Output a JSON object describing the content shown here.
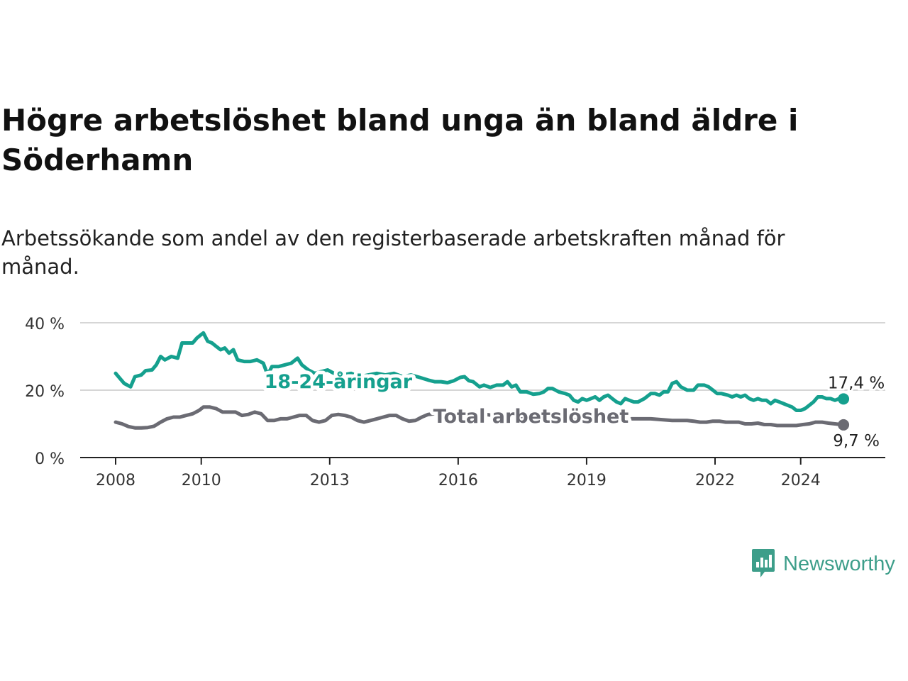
{
  "title": "Högre arbetslöshet bland unga än bland äldre i Söderhamn",
  "subtitle": "Arbetssökande som andel av den registerbaserade arbetskraften månad för månad.",
  "brand": {
    "name": "Newsworthy",
    "color": "#3d9e8a",
    "icon": "newsworthy-chart-bubble-icon"
  },
  "chart_data": {
    "type": "line",
    "y_ticks": [
      {
        "value": 0,
        "label": "0 %"
      },
      {
        "value": 20,
        "label": "20 %"
      },
      {
        "value": 40,
        "label": "40 %"
      }
    ],
    "x_ticks": [
      {
        "value": 2008,
        "label": "2008"
      },
      {
        "value": 2010,
        "label": "2010"
      },
      {
        "value": 2013,
        "label": "2013"
      },
      {
        "value": 2016,
        "label": "2016"
      },
      {
        "value": 2019,
        "label": "2019"
      },
      {
        "value": 2022,
        "label": "2022"
      },
      {
        "value": 2024,
        "label": "2024"
      }
    ],
    "xlim": [
      2007.2,
      2025.35
    ],
    "ylim": [
      0,
      40
    ],
    "grid": true,
    "series": [
      {
        "name": "18-24-åringar",
        "color": "#15a08e",
        "end_label": "17,4 %",
        "points": [
          [
            2008.0,
            25.0
          ],
          [
            2008.1,
            23.5
          ],
          [
            2008.2,
            22.0
          ],
          [
            2008.35,
            21.0
          ],
          [
            2008.45,
            24.0
          ],
          [
            2008.6,
            24.5
          ],
          [
            2008.7,
            25.8
          ],
          [
            2008.85,
            26.0
          ],
          [
            2008.95,
            27.5
          ],
          [
            2009.05,
            30.0
          ],
          [
            2009.15,
            29.0
          ],
          [
            2009.3,
            30.0
          ],
          [
            2009.45,
            29.5
          ],
          [
            2009.55,
            34.0
          ],
          [
            2009.7,
            34.0
          ],
          [
            2009.8,
            34.0
          ],
          [
            2009.9,
            35.5
          ],
          [
            2010.0,
            36.5
          ],
          [
            2010.05,
            37.0
          ],
          [
            2010.15,
            34.5
          ],
          [
            2010.25,
            34.0
          ],
          [
            2010.35,
            33.0
          ],
          [
            2010.45,
            32.0
          ],
          [
            2010.55,
            32.5
          ],
          [
            2010.65,
            31.0
          ],
          [
            2010.75,
            32.0
          ],
          [
            2010.85,
            29.0
          ],
          [
            2011.0,
            28.5
          ],
          [
            2011.15,
            28.5
          ],
          [
            2011.3,
            29.0
          ],
          [
            2011.45,
            28.0
          ],
          [
            2011.55,
            24.5
          ],
          [
            2011.65,
            27.0
          ],
          [
            2011.8,
            27.0
          ],
          [
            2011.95,
            27.5
          ],
          [
            2012.1,
            28.0
          ],
          [
            2012.25,
            29.5
          ],
          [
            2012.35,
            27.5
          ],
          [
            2012.5,
            26.0
          ],
          [
            2012.65,
            25.0
          ],
          [
            2012.8,
            25.5
          ],
          [
            2012.95,
            26.0
          ],
          [
            2013.1,
            25.0
          ],
          [
            2013.3,
            24.5
          ],
          [
            2013.5,
            25.0
          ],
          [
            2013.7,
            24.0
          ],
          [
            2013.9,
            24.5
          ],
          [
            2014.1,
            25.0
          ],
          [
            2014.3,
            24.5
          ],
          [
            2014.5,
            25.0
          ],
          [
            2014.7,
            24.0
          ],
          [
            2014.9,
            24.5
          ],
          [
            2015.1,
            23.8
          ],
          [
            2015.3,
            23.0
          ],
          [
            2015.45,
            22.5
          ],
          [
            2015.6,
            22.5
          ],
          [
            2015.75,
            22.2
          ],
          [
            2015.9,
            22.8
          ],
          [
            2016.05,
            23.8
          ],
          [
            2016.15,
            24.0
          ],
          [
            2016.25,
            22.8
          ],
          [
            2016.35,
            22.5
          ],
          [
            2016.5,
            21.0
          ],
          [
            2016.6,
            21.5
          ],
          [
            2016.75,
            20.8
          ],
          [
            2016.9,
            21.5
          ],
          [
            2017.05,
            21.5
          ],
          [
            2017.15,
            22.5
          ],
          [
            2017.25,
            21.0
          ],
          [
            2017.35,
            21.5
          ],
          [
            2017.45,
            19.5
          ],
          [
            2017.6,
            19.5
          ],
          [
            2017.75,
            18.8
          ],
          [
            2017.9,
            19.0
          ],
          [
            2018.0,
            19.5
          ],
          [
            2018.1,
            20.5
          ],
          [
            2018.2,
            20.5
          ],
          [
            2018.35,
            19.5
          ],
          [
            2018.5,
            19.0
          ],
          [
            2018.6,
            18.5
          ],
          [
            2018.7,
            17.0
          ],
          [
            2018.8,
            16.5
          ],
          [
            2018.9,
            17.5
          ],
          [
            2019.0,
            17.0
          ],
          [
            2019.1,
            17.5
          ],
          [
            2019.2,
            18.0
          ],
          [
            2019.3,
            17.0
          ],
          [
            2019.4,
            18.0
          ],
          [
            2019.5,
            18.5
          ],
          [
            2019.6,
            17.5
          ],
          [
            2019.7,
            16.5
          ],
          [
            2019.8,
            16.0
          ],
          [
            2019.9,
            17.5
          ],
          [
            2020.0,
            17.0
          ],
          [
            2020.1,
            16.5
          ],
          [
            2020.2,
            16.5
          ],
          [
            2020.35,
            17.5
          ],
          [
            2020.5,
            19.0
          ],
          [
            2020.6,
            19.0
          ],
          [
            2020.7,
            18.5
          ],
          [
            2020.8,
            19.5
          ],
          [
            2020.9,
            19.5
          ],
          [
            2021.0,
            22.0
          ],
          [
            2021.1,
            22.5
          ],
          [
            2021.2,
            21.0
          ],
          [
            2021.35,
            20.0
          ],
          [
            2021.5,
            20.0
          ],
          [
            2021.6,
            21.5
          ],
          [
            2021.75,
            21.5
          ],
          [
            2021.85,
            21.0
          ],
          [
            2021.95,
            20.0
          ],
          [
            2022.05,
            19.0
          ],
          [
            2022.15,
            19.0
          ],
          [
            2022.3,
            18.5
          ],
          [
            2022.4,
            18.0
          ],
          [
            2022.5,
            18.5
          ],
          [
            2022.6,
            18.0
          ],
          [
            2022.7,
            18.5
          ],
          [
            2022.8,
            17.5
          ],
          [
            2022.9,
            17.0
          ],
          [
            2023.0,
            17.5
          ],
          [
            2023.1,
            17.0
          ],
          [
            2023.2,
            17.0
          ],
          [
            2023.3,
            16.0
          ],
          [
            2023.4,
            17.0
          ],
          [
            2023.5,
            16.5
          ],
          [
            2023.6,
            16.0
          ],
          [
            2023.7,
            15.5
          ],
          [
            2023.8,
            15.0
          ],
          [
            2023.9,
            14.0
          ],
          [
            2024.0,
            14.0
          ],
          [
            2024.1,
            14.5
          ],
          [
            2024.2,
            15.5
          ],
          [
            2024.3,
            16.5
          ],
          [
            2024.4,
            18.0
          ],
          [
            2024.5,
            18.0
          ],
          [
            2024.6,
            17.5
          ],
          [
            2024.7,
            17.5
          ],
          [
            2024.8,
            17.0
          ],
          [
            2024.9,
            17.5
          ],
          [
            2025.0,
            17.4
          ]
        ]
      },
      {
        "name": "Total arbetslöshet",
        "color": "#6b6b73",
        "end_label": "9,7 %",
        "points": [
          [
            2008.0,
            10.5
          ],
          [
            2008.15,
            10.0
          ],
          [
            2008.3,
            9.2
          ],
          [
            2008.45,
            8.8
          ],
          [
            2008.6,
            8.8
          ],
          [
            2008.75,
            8.9
          ],
          [
            2008.9,
            9.3
          ],
          [
            2009.05,
            10.5
          ],
          [
            2009.2,
            11.5
          ],
          [
            2009.35,
            12.0
          ],
          [
            2009.5,
            12.0
          ],
          [
            2009.65,
            12.5
          ],
          [
            2009.8,
            13.0
          ],
          [
            2009.95,
            14.0
          ],
          [
            2010.05,
            15.0
          ],
          [
            2010.2,
            15.0
          ],
          [
            2010.35,
            14.5
          ],
          [
            2010.5,
            13.5
          ],
          [
            2010.65,
            13.5
          ],
          [
            2010.8,
            13.5
          ],
          [
            2010.95,
            12.5
          ],
          [
            2011.1,
            12.8
          ],
          [
            2011.25,
            13.5
          ],
          [
            2011.4,
            13.0
          ],
          [
            2011.55,
            11.0
          ],
          [
            2011.7,
            11.0
          ],
          [
            2011.85,
            11.5
          ],
          [
            2012.0,
            11.5
          ],
          [
            2012.15,
            12.0
          ],
          [
            2012.3,
            12.5
          ],
          [
            2012.45,
            12.5
          ],
          [
            2012.6,
            11.0
          ],
          [
            2012.75,
            10.5
          ],
          [
            2012.9,
            11.0
          ],
          [
            2013.05,
            12.5
          ],
          [
            2013.2,
            12.8
          ],
          [
            2013.35,
            12.5
          ],
          [
            2013.5,
            12.0
          ],
          [
            2013.65,
            11.0
          ],
          [
            2013.8,
            10.5
          ],
          [
            2013.95,
            11.0
          ],
          [
            2014.1,
            11.5
          ],
          [
            2014.25,
            12.0
          ],
          [
            2014.4,
            12.5
          ],
          [
            2014.55,
            12.5
          ],
          [
            2014.7,
            11.5
          ],
          [
            2014.85,
            10.8
          ],
          [
            2015.0,
            11.0
          ],
          [
            2015.15,
            12.0
          ],
          [
            2015.3,
            12.8
          ],
          [
            2015.45,
            13.0
          ],
          [
            2015.6,
            13.0
          ],
          [
            2015.75,
            12.5
          ],
          [
            2015.9,
            12.5
          ],
          [
            2016.05,
            12.8
          ],
          [
            2016.2,
            13.5
          ],
          [
            2016.35,
            13.8
          ],
          [
            2016.5,
            13.5
          ],
          [
            2016.65,
            12.8
          ],
          [
            2016.8,
            12.5
          ],
          [
            2016.95,
            12.5
          ],
          [
            2017.1,
            12.5
          ],
          [
            2017.3,
            12.0
          ],
          [
            2017.6,
            11.8
          ],
          [
            2018.0,
            11.5
          ],
          [
            2018.5,
            11.0
          ],
          [
            2019.0,
            11.5
          ],
          [
            2019.5,
            11.5
          ],
          [
            2020.0,
            11.5
          ],
          [
            2020.5,
            11.5
          ],
          [
            2021.0,
            11.0
          ],
          [
            2021.2,
            11.0
          ],
          [
            2021.35,
            11.0
          ],
          [
            2021.5,
            10.8
          ],
          [
            2021.65,
            10.5
          ],
          [
            2021.8,
            10.5
          ],
          [
            2021.95,
            10.8
          ],
          [
            2022.1,
            10.8
          ],
          [
            2022.25,
            10.5
          ],
          [
            2022.4,
            10.5
          ],
          [
            2022.55,
            10.5
          ],
          [
            2022.7,
            10.0
          ],
          [
            2022.85,
            10.0
          ],
          [
            2023.0,
            10.2
          ],
          [
            2023.15,
            9.8
          ],
          [
            2023.3,
            9.8
          ],
          [
            2023.45,
            9.5
          ],
          [
            2023.6,
            9.5
          ],
          [
            2023.75,
            9.5
          ],
          [
            2023.9,
            9.5
          ],
          [
            2024.05,
            9.8
          ],
          [
            2024.2,
            10.0
          ],
          [
            2024.35,
            10.5
          ],
          [
            2024.5,
            10.5
          ],
          [
            2024.65,
            10.2
          ],
          [
            2024.8,
            10.0
          ],
          [
            2025.0,
            9.7
          ]
        ]
      }
    ],
    "inline_labels": [
      {
        "series": "18-24-åringar",
        "text": "18-24-åringar",
        "x": 2013.2,
        "y": 22.5
      },
      {
        "series": "Total arbetslöshet",
        "text": "Total arbetslöshet",
        "x": 2017.7,
        "y": 12.2
      }
    ]
  }
}
